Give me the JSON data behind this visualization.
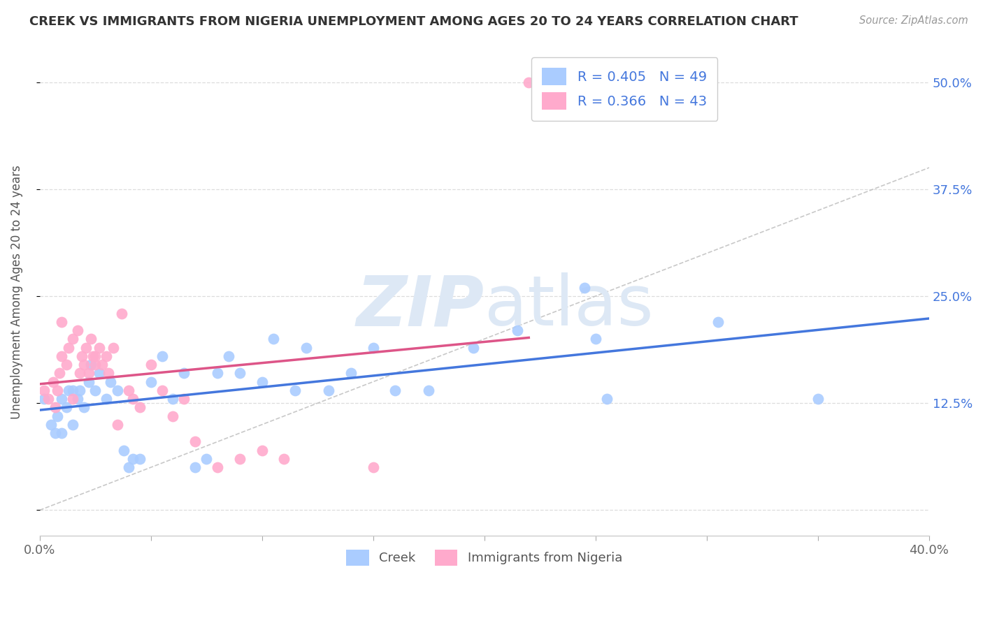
{
  "title": "CREEK VS IMMIGRANTS FROM NIGERIA UNEMPLOYMENT AMONG AGES 20 TO 24 YEARS CORRELATION CHART",
  "source": "Source: ZipAtlas.com",
  "ylabel": "Unemployment Among Ages 20 to 24 years",
  "xlim": [
    0.0,
    0.4
  ],
  "ylim": [
    -0.03,
    0.54
  ],
  "xtick_positions": [
    0.0,
    0.05,
    0.1,
    0.15,
    0.2,
    0.25,
    0.3,
    0.35,
    0.4
  ],
  "ytick_positions": [
    0.0,
    0.125,
    0.25,
    0.375,
    0.5
  ],
  "yticklabels": [
    "",
    "12.5%",
    "25.0%",
    "37.5%",
    "50.0%"
  ],
  "creek_R": 0.405,
  "creek_N": 49,
  "nigeria_R": 0.366,
  "nigeria_N": 43,
  "creek_color": "#aaccff",
  "nigeria_color": "#ffaacc",
  "creek_line_color": "#4477dd",
  "nigeria_line_color": "#dd5588",
  "diagonal_color": "#bbbbbb",
  "axis_label_color": "#4477dd",
  "background_color": "#ffffff",
  "grid_color": "#dddddd",
  "watermark_zip": "ZIP",
  "watermark_atlas": "atlas",
  "watermark_color": "#dde8f5",
  "creek_x": [
    0.002,
    0.005,
    0.007,
    0.008,
    0.01,
    0.01,
    0.012,
    0.013,
    0.015,
    0.015,
    0.017,
    0.018,
    0.02,
    0.022,
    0.023,
    0.025,
    0.027,
    0.03,
    0.032,
    0.035,
    0.038,
    0.04,
    0.042,
    0.045,
    0.05,
    0.055,
    0.06,
    0.065,
    0.07,
    0.075,
    0.08,
    0.085,
    0.09,
    0.1,
    0.105,
    0.115,
    0.12,
    0.13,
    0.14,
    0.15,
    0.16,
    0.175,
    0.195,
    0.215,
    0.245,
    0.25,
    0.255,
    0.305,
    0.35
  ],
  "creek_y": [
    0.13,
    0.1,
    0.09,
    0.11,
    0.09,
    0.13,
    0.12,
    0.14,
    0.1,
    0.14,
    0.13,
    0.14,
    0.12,
    0.15,
    0.17,
    0.14,
    0.16,
    0.13,
    0.15,
    0.14,
    0.07,
    0.05,
    0.06,
    0.06,
    0.15,
    0.18,
    0.13,
    0.16,
    0.05,
    0.06,
    0.16,
    0.18,
    0.16,
    0.15,
    0.2,
    0.14,
    0.19,
    0.14,
    0.16,
    0.19,
    0.14,
    0.14,
    0.19,
    0.21,
    0.26,
    0.2,
    0.13,
    0.22,
    0.13
  ],
  "nigeria_x": [
    0.002,
    0.004,
    0.006,
    0.007,
    0.008,
    0.009,
    0.01,
    0.01,
    0.012,
    0.013,
    0.015,
    0.015,
    0.017,
    0.018,
    0.019,
    0.02,
    0.021,
    0.022,
    0.023,
    0.024,
    0.025,
    0.025,
    0.027,
    0.028,
    0.03,
    0.031,
    0.033,
    0.035,
    0.037,
    0.04,
    0.042,
    0.045,
    0.05,
    0.055,
    0.06,
    0.065,
    0.07,
    0.08,
    0.09,
    0.1,
    0.11,
    0.15,
    0.22
  ],
  "nigeria_y": [
    0.14,
    0.13,
    0.15,
    0.12,
    0.14,
    0.16,
    0.18,
    0.22,
    0.17,
    0.19,
    0.2,
    0.13,
    0.21,
    0.16,
    0.18,
    0.17,
    0.19,
    0.16,
    0.2,
    0.18,
    0.17,
    0.18,
    0.19,
    0.17,
    0.18,
    0.16,
    0.19,
    0.1,
    0.23,
    0.14,
    0.13,
    0.12,
    0.17,
    0.14,
    0.11,
    0.13,
    0.08,
    0.05,
    0.06,
    0.07,
    0.06,
    0.05,
    0.5
  ]
}
